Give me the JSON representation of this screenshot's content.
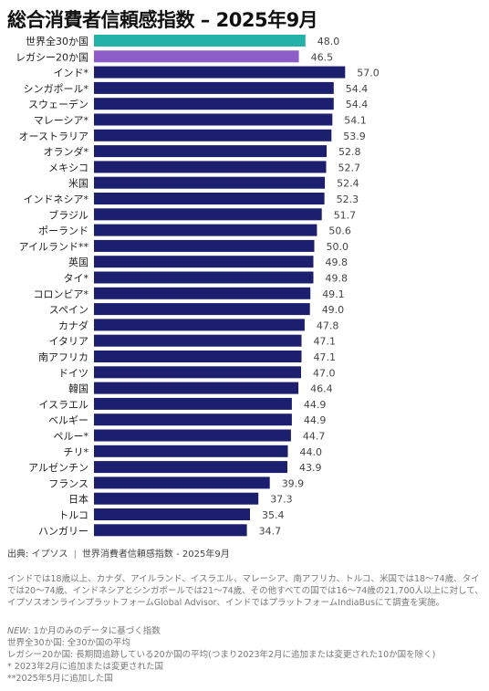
{
  "title": "総合消費者信頼感指数 – 2025年9月",
  "colors": {
    "bar_default": "#1b1f6e",
    "bar_global": "#24b2a8",
    "bar_legacy": "#8e5ec8"
  },
  "chart_data": {
    "type": "bar",
    "orientation": "horizontal",
    "title": "総合消費者信頼感指数 – 2025年9月",
    "xlabel": "",
    "ylabel": "",
    "xlim": [
      0,
      60
    ],
    "grid": false,
    "categories": [
      "世界全30か国",
      "レガシー20か国",
      "インド*",
      "シンガポール*",
      "スウェーデン",
      "マレーシア*",
      "オーストラリア",
      "オランダ*",
      "メキシコ",
      "米国",
      "インドネシア*",
      "ブラジル",
      "ポーランド",
      "アイルランド**",
      "英国",
      "タイ*",
      "コロンビア*",
      "スペイン",
      "カナダ",
      "イタリア",
      "南アフリカ",
      "ドイツ",
      "韓国",
      "イスラエル",
      "ベルギー",
      "ペルー*",
      "チリ*",
      "アルゼンチン",
      "フランス",
      "日本",
      "トルコ",
      "ハンガリー"
    ],
    "values": [
      48.0,
      46.5,
      57.0,
      54.4,
      54.4,
      54.1,
      53.9,
      52.8,
      52.7,
      52.4,
      52.3,
      51.7,
      50.6,
      50.0,
      49.8,
      49.8,
      49.1,
      49.0,
      47.8,
      47.1,
      47.1,
      47.0,
      46.4,
      44.9,
      44.9,
      44.7,
      44.0,
      43.9,
      39.9,
      37.3,
      35.4,
      34.7
    ],
    "labels": [
      "48.0",
      "46.5",
      "57.0",
      "54.4",
      "54.4",
      "54.1",
      "53.9",
      "52.8",
      "52.7",
      "52.4",
      "52.3",
      "51.7",
      "50.6",
      "50.0",
      "49.8",
      "49.8",
      "49.1",
      "49.0",
      "47.8",
      "47.1",
      "47.1",
      "47.0",
      "46.4",
      "44.9",
      "44.9",
      "44.7",
      "44.0",
      "43.9",
      "39.9",
      "37.3",
      "35.4",
      "34.7"
    ]
  },
  "source": {
    "label": "出典: イプソス",
    "separator": "|",
    "text": "世界消費者信頼感指数 - 2025年9月"
  },
  "notes": "インドでは18歳以上、カナダ、アイルランド、イスラエル、マレーシア、南アフリカ、トルコ、米国では18～74歳、タイでは20～74歳、インドネシアとシンガポールでは21～74歳、その他すべての国では16～74歳の21,700人以上に対して、イプソスオンラインプラットフォームGlobal Advisor、インドではプラットフォームIndiaBusにて調査を実施。",
  "legend": {
    "new_tag": "NEW",
    "new_text": ": 1か月のみのデータに基づく指数",
    "global": "世界全30か国: 全30か国の平均",
    "legacy": "レガシー20か国: 長期間追跡している20か国の平均(つまり2023年2月に追加または変更された10か国を除く)",
    "single_star": "* 2023年2月に追加または変更された国",
    "double_star": "**2025年5月に追加した国"
  }
}
